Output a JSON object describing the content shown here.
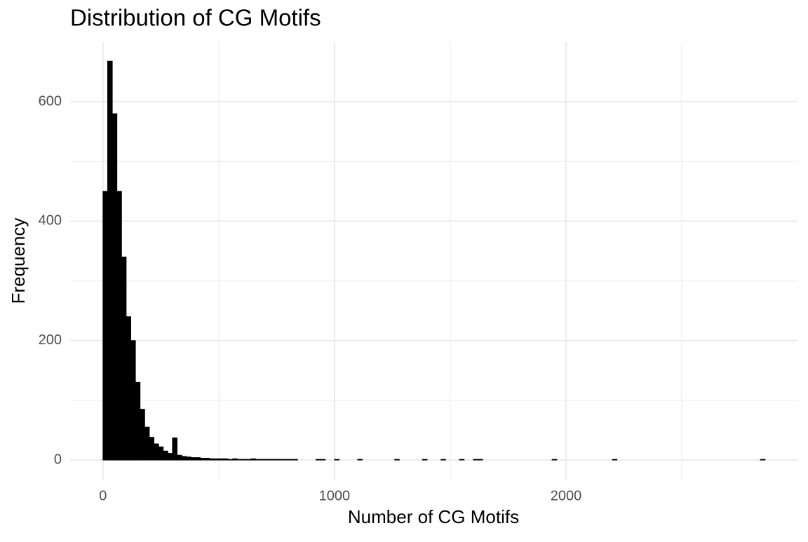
{
  "chart_data": {
    "type": "histogram",
    "title": "Distribution of CG Motifs",
    "x_label": "Number of CG Motifs",
    "y_label": "Frequency",
    "color": "#000000",
    "bins": [
      0,
      20,
      40,
      60,
      80,
      100,
      120,
      140,
      160,
      180,
      200,
      220,
      240,
      260,
      280,
      300,
      320,
      340,
      360,
      380,
      400,
      420,
      440,
      460,
      480,
      500,
      520,
      540,
      560,
      580,
      600,
      620,
      640,
      660,
      680,
      700,
      720,
      740,
      760,
      780,
      800,
      820,
      840,
      860,
      880,
      900,
      920,
      940,
      960,
      980,
      1000,
      1020,
      1040,
      1060,
      1080,
      1100,
      1120,
      1140,
      1160,
      1180,
      1200,
      1220,
      1240,
      1260,
      1280,
      1300,
      1320,
      1340,
      1360,
      1380,
      1400,
      1420,
      1440,
      1460,
      1480,
      1500,
      1520,
      1540,
      1560,
      1580,
      1600,
      1620,
      1640,
      1660,
      1680,
      1700,
      1720,
      1740,
      1760,
      1780,
      1800,
      1820,
      1840,
      1860,
      1880,
      1900,
      1920,
      1940,
      1960,
      1980,
      2000,
      2020,
      2040,
      2060,
      2080,
      2100,
      2120,
      2140,
      2160,
      2180,
      2200,
      2220,
      2240,
      2260,
      2280,
      2300,
      2320,
      2340,
      2360,
      2380,
      2400,
      2420,
      2440,
      2460,
      2480,
      2500,
      2520,
      2540,
      2560,
      2580,
      2600,
      2620,
      2640,
      2660,
      2680,
      2700,
      2720,
      2740,
      2760,
      2780,
      2800,
      2820,
      2840,
      2860
    ],
    "values": [
      450,
      668,
      580,
      450,
      340,
      240,
      200,
      130,
      85,
      55,
      38,
      27,
      22,
      15,
      11,
      37,
      8,
      6,
      5,
      4,
      4,
      3,
      3,
      2,
      2,
      2,
      2,
      1,
      2,
      1,
      1,
      1,
      2,
      1,
      1,
      1,
      1,
      1,
      1,
      1,
      1,
      1,
      0,
      0,
      0,
      0,
      1,
      1,
      0,
      0,
      1,
      0,
      0,
      0,
      0,
      1,
      0,
      0,
      0,
      0,
      0,
      0,
      0,
      1,
      0,
      0,
      0,
      0,
      0,
      1,
      0,
      0,
      0,
      1,
      0,
      0,
      0,
      1,
      0,
      0,
      1,
      1,
      0,
      0,
      0,
      0,
      0,
      0,
      0,
      0,
      0,
      0,
      0,
      0,
      0,
      0,
      0,
      1,
      0,
      0,
      0,
      0,
      0,
      0,
      0,
      0,
      0,
      0,
      0,
      0,
      1,
      0,
      0,
      0,
      0,
      0,
      0,
      0,
      0,
      0,
      0,
      0,
      0,
      0,
      0,
      0,
      0,
      0,
      0,
      0,
      0,
      0,
      0,
      0,
      0,
      0,
      0,
      0,
      0,
      0,
      0,
      0,
      1
    ],
    "xlim": [
      -142,
      3000
    ],
    "xticks": [
      0,
      1000,
      2000
    ],
    "x_minor_ticks": [
      500,
      1500,
      2500
    ],
    "ylim": [
      -34,
      700
    ],
    "yticks": [
      0,
      200,
      400,
      600
    ],
    "y_minor_ticks": [
      100,
      300,
      500
    ],
    "grid": true
  }
}
